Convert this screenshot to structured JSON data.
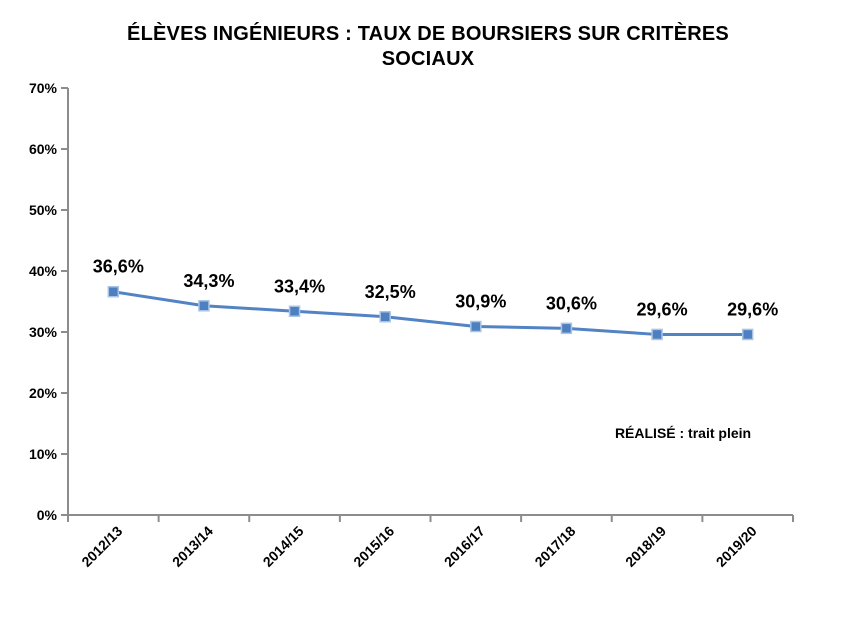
{
  "title": {
    "lines": [
      "ÉLÈVES INGÉNIEURS : TAUX DE BOURSIERS SUR CRITÈRES",
      "SOCIAUX"
    ]
  },
  "chart_data": {
    "type": "line",
    "title": "ÉLÈVES INGÉNIEURS : TAUX DE BOURSIERS SUR CRITÈRES SOCIAUX",
    "categories": [
      "2012/13",
      "2013/14",
      "2014/15",
      "2015/16",
      "2016/17",
      "2017/18",
      "2018/19",
      "2019/20"
    ],
    "values": [
      36.6,
      34.3,
      33.4,
      32.5,
      30.9,
      30.6,
      29.6,
      29.6
    ],
    "point_labels": [
      "36,6%",
      "34,3%",
      "33,4%",
      "32,5%",
      "30,9%",
      "30,6%",
      "29,6%",
      "29,6%"
    ],
    "xlabel": "",
    "ylabel": "",
    "ylim": [
      0,
      70
    ],
    "y_tick_values": [
      0,
      10,
      20,
      30,
      40,
      50,
      60,
      70
    ],
    "y_tick_labels": [
      "0%",
      "10%",
      "20%",
      "30%",
      "40%",
      "50%",
      "60%",
      "70%"
    ],
    "grid": false,
    "legend_position": "none",
    "marker": "square",
    "annotation": "RÉALISÉ : trait plein",
    "annotation_pos": {
      "x": 683,
      "y": 438
    },
    "colors": {
      "line": "#5283C4",
      "marker_fill": "#4E7FC0",
      "marker_border": "#A9C5E5",
      "axis": "#8C8C8C",
      "text": "#000000"
    }
  }
}
